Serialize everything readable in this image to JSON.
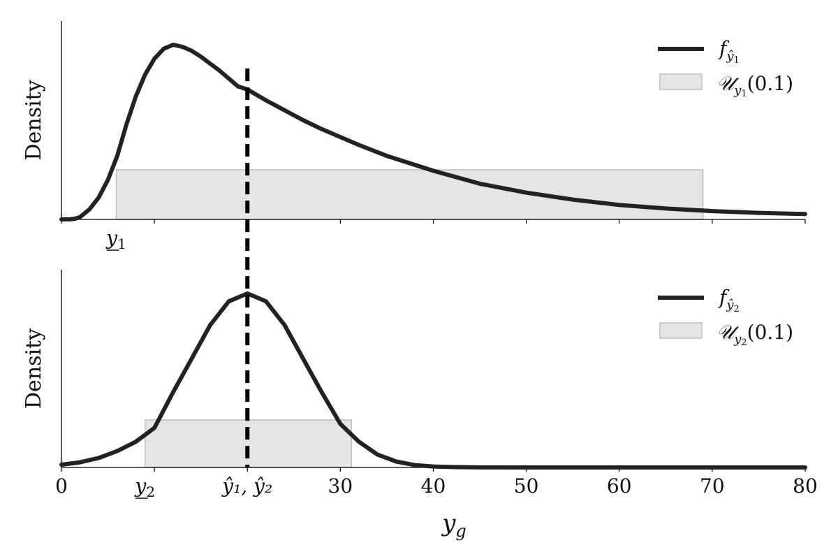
{
  "chart_data": [
    {
      "type": "line",
      "panel": "top",
      "ylabel": "Density",
      "xlim": [
        0,
        80
      ],
      "x_ticks": [
        0,
        10,
        20,
        30,
        40,
        50,
        60,
        70,
        80
      ],
      "x_tick_labels_shown": false,
      "extra_x_tick": {
        "x": 5.9,
        "label_base": "y",
        "label_sub": "1",
        "underline": true
      },
      "series": [
        {
          "name_base": "f",
          "name_sub": "ŷ",
          "name_subsub": "1",
          "color": "#222222",
          "x": [
            0,
            1,
            1.5,
            2,
            3,
            4,
            5,
            6,
            7,
            8,
            9,
            10,
            11,
            12,
            13,
            14,
            15,
            16,
            17,
            18,
            19,
            20,
            22,
            24,
            26,
            28,
            30,
            32,
            35,
            40,
            45,
            50,
            55,
            60,
            65,
            70,
            75,
            80
          ],
          "y": [
            0,
            0.001,
            0.004,
            0.012,
            0.05,
            0.11,
            0.2,
            0.32,
            0.48,
            0.62,
            0.73,
            0.81,
            0.86,
            0.88,
            0.87,
            0.85,
            0.82,
            0.785,
            0.75,
            0.71,
            0.67,
            0.655,
            0.6,
            0.55,
            0.5,
            0.455,
            0.415,
            0.375,
            0.32,
            0.245,
            0.18,
            0.135,
            0.1,
            0.073,
            0.055,
            0.042,
            0.033,
            0.027
          ]
        }
      ],
      "band": {
        "name_base": "𝒰",
        "name_sub": "y",
        "name_subsub": "1",
        "name_suffix": "(0.1)",
        "x0": 5.9,
        "x1": 69,
        "height": 0.25,
        "color": "#e5e5e5"
      },
      "ylim": [
        0,
        1
      ]
    },
    {
      "type": "line",
      "panel": "bottom",
      "ylabel": "Density",
      "xlabel_base": "y",
      "xlabel_sub": "g",
      "xlim": [
        0,
        80
      ],
      "x_ticks": [
        0,
        10,
        20,
        30,
        40,
        50,
        60,
        70,
        80
      ],
      "x_tick_labels": [
        "0",
        "",
        "",
        "30",
        "40",
        "50",
        "60",
        "70",
        "80"
      ],
      "extra_x_ticks": [
        {
          "x": 9,
          "label_base": "y",
          "label_sub": "2",
          "underline": true
        },
        {
          "x": 20,
          "label_text": "ŷ₁, ŷ₂"
        }
      ],
      "series": [
        {
          "name_base": "f",
          "name_sub": "ŷ",
          "name_subsub": "2",
          "color": "#222222",
          "x": [
            0,
            2,
            4,
            6,
            8,
            10,
            12,
            14,
            16,
            18,
            20,
            22,
            24,
            26,
            28,
            30,
            32,
            34,
            36,
            38,
            40,
            42,
            45,
            50,
            60,
            70,
            80
          ],
          "y": [
            0.014,
            0.026,
            0.048,
            0.083,
            0.13,
            0.2,
            0.38,
            0.55,
            0.72,
            0.84,
            0.88,
            0.84,
            0.72,
            0.55,
            0.38,
            0.22,
            0.13,
            0.065,
            0.03,
            0.012,
            0.005,
            0.002,
            0.0005,
            0,
            0,
            0,
            0
          ]
        }
      ],
      "band": {
        "name_base": "𝒰",
        "name_sub": "y",
        "name_subsub": "2",
        "name_suffix": "(0.1)",
        "x0": 9,
        "x1": 31.2,
        "height": 0.24,
        "color": "#e5e5e5"
      },
      "ylim": [
        0,
        1
      ]
    }
  ],
  "shared_marker": {
    "x": 20,
    "style": "dashed",
    "color": "#000000"
  }
}
